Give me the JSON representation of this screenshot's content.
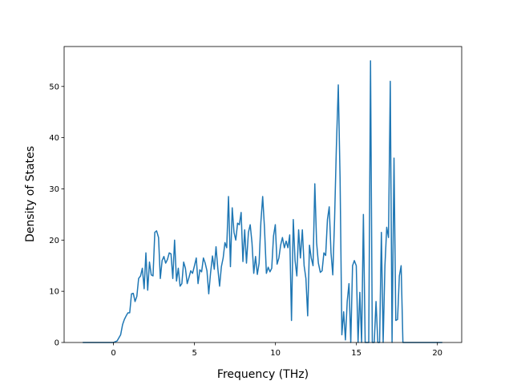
{
  "chart_data": {
    "type": "line",
    "xlabel": "Frequency (THz)",
    "ylabel": "Density of States",
    "xlim": [
      -3.05,
      21.5
    ],
    "ylim": [
      0,
      57.8
    ],
    "xticks": [
      0,
      5,
      10,
      15,
      20
    ],
    "yticks": [
      0,
      10,
      20,
      30,
      40,
      50
    ],
    "series": [
      {
        "color": "#1f77b4",
        "x": [
          -1.9,
          0,
          0.22,
          0.44,
          0.56,
          0.67,
          0.78,
          0.89,
          1.0,
          1.11,
          1.22,
          1.33,
          1.44,
          1.55,
          1.67,
          1.78,
          1.89,
          2.0,
          2.11,
          2.22,
          2.33,
          2.44,
          2.55,
          2.66,
          2.78,
          2.89,
          3.0,
          3.11,
          3.22,
          3.33,
          3.44,
          3.55,
          3.66,
          3.77,
          3.89,
          4.0,
          4.11,
          4.22,
          4.33,
          4.44,
          4.55,
          4.66,
          4.77,
          4.88,
          5.0,
          5.11,
          5.22,
          5.33,
          5.44,
          5.55,
          5.66,
          5.77,
          5.88,
          5.99,
          6.11,
          6.22,
          6.33,
          6.44,
          6.55,
          6.66,
          6.77,
          6.88,
          6.99,
          7.1,
          7.22,
          7.33,
          7.44,
          7.55,
          7.66,
          7.77,
          7.88,
          7.99,
          8.1,
          8.21,
          8.33,
          8.44,
          8.55,
          8.66,
          8.77,
          8.88,
          8.99,
          9.1,
          9.21,
          9.32,
          9.44,
          9.55,
          9.66,
          9.77,
          9.88,
          9.99,
          10.1,
          10.21,
          10.32,
          10.43,
          10.55,
          10.66,
          10.77,
          10.88,
          10.99,
          11.1,
          11.21,
          11.32,
          11.43,
          11.54,
          11.66,
          11.77,
          11.88,
          11.99,
          12.1,
          12.21,
          12.32,
          12.43,
          12.54,
          12.65,
          12.77,
          12.88,
          12.99,
          13.1,
          13.21,
          13.32,
          13.43,
          13.54,
          13.65,
          13.76,
          13.88,
          13.99,
          14.1,
          14.21,
          14.32,
          14.43,
          14.54,
          14.65,
          14.76,
          14.87,
          14.99,
          15.1,
          15.21,
          15.32,
          15.43,
          15.54,
          15.65,
          15.76,
          15.87,
          15.98,
          16.1,
          16.21,
          16.32,
          16.43,
          16.54,
          16.65,
          16.76,
          16.87,
          16.98,
          17.09,
          17.2,
          17.32,
          17.43,
          17.54,
          17.65,
          17.76,
          17.87,
          17.98,
          20.3
        ],
        "values": [
          0,
          0,
          0.3,
          1.5,
          3.5,
          4.5,
          5.2,
          5.8,
          5.8,
          9.5,
          9.6,
          8,
          9,
          12.5,
          13,
          14.5,
          10.5,
          17.5,
          10.2,
          15.7,
          13.2,
          13,
          21.5,
          21.8,
          20.5,
          12.5,
          16,
          16.8,
          15.5,
          16.2,
          17.5,
          17.3,
          12.5,
          20,
          12,
          14.5,
          11,
          11.5,
          15.7,
          14.5,
          11.5,
          12.7,
          14,
          13.5,
          15,
          16.5,
          11.5,
          14.2,
          13.8,
          16.5,
          15.5,
          14,
          9.5,
          13.5,
          16.9,
          14.3,
          18.7,
          14.5,
          11,
          14.8,
          16.5,
          19.5,
          18.5,
          28.5,
          14.8,
          26.3,
          21.5,
          20,
          23.3,
          23,
          25.4,
          15.8,
          22,
          15.5,
          21.5,
          23,
          19.5,
          13.5,
          16.8,
          13.3,
          15.5,
          23.5,
          28.5,
          22.5,
          13.5,
          14.7,
          13.8,
          14.5,
          20.8,
          23,
          15.3,
          16.5,
          19,
          20.5,
          18.5,
          19.8,
          18.5,
          21,
          4.3,
          24,
          16,
          13,
          22,
          16.5,
          22,
          15,
          12.5,
          5.2,
          19,
          16.5,
          15,
          31,
          19.5,
          15.5,
          13.7,
          14,
          17.5,
          17,
          24,
          26.5,
          17.5,
          13.2,
          24,
          38,
          50.3,
          32,
          1.5,
          6,
          0.5,
          8,
          11.5,
          0,
          15,
          16,
          15,
          0,
          9.8,
          0,
          25,
          0,
          0,
          0,
          55,
          0,
          0,
          8,
          0,
          0,
          21.5,
          0,
          15,
          22.5,
          20.5,
          51,
          0,
          36,
          4.3,
          4.5,
          13,
          15,
          0,
          0,
          0
        ]
      }
    ]
  }
}
